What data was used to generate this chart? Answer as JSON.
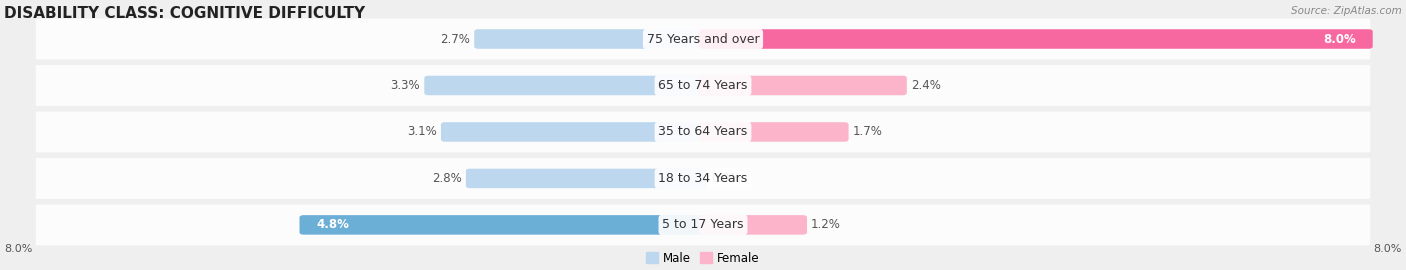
{
  "title": "DISABILITY CLASS: COGNITIVE DIFFICULTY",
  "source": "Source: ZipAtlas.com",
  "categories": [
    "5 to 17 Years",
    "18 to 34 Years",
    "35 to 64 Years",
    "65 to 74 Years",
    "75 Years and over"
  ],
  "male_values": [
    4.8,
    2.8,
    3.1,
    3.3,
    2.7
  ],
  "female_values": [
    1.2,
    0.0,
    1.7,
    2.4,
    8.0
  ],
  "max_value": 8.0,
  "male_color_dark": "#6baed6",
  "male_color_light": "#bdd7ee",
  "female_color_dark": "#f768a1",
  "female_color_light": "#fbb4c9",
  "bg_color": "#efefef",
  "title_fontsize": 11,
  "label_fontsize": 8.5,
  "axis_label_fontsize": 8,
  "bar_height": 0.32,
  "x_axis_label_left": "8.0%",
  "x_axis_label_right": "8.0%"
}
